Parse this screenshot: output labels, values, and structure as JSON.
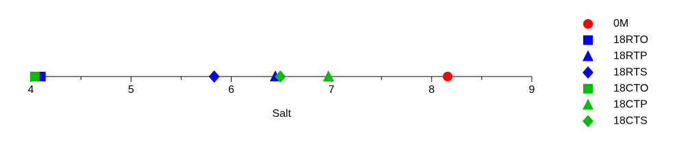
{
  "chart_data": {
    "type": "scatter",
    "x_label": "Salt",
    "xlim": [
      4,
      9
    ],
    "xticks": [
      4,
      5,
      6,
      7,
      8,
      9
    ],
    "minor_xticks": [
      4.5,
      5.5,
      6.5,
      7.5,
      8.5
    ],
    "legend": "right",
    "series": [
      {
        "name": "0M",
        "color": "#ff0000",
        "marker": "circle",
        "values": [
          8.16
        ]
      },
      {
        "name": "18RTO",
        "color": "#0000ff",
        "marker": "square",
        "values": [
          4.1
        ]
      },
      {
        "name": "18RTP",
        "color": "#0000ff",
        "marker": "triangle",
        "values": [
          6.44
        ]
      },
      {
        "name": "18RTS",
        "color": "#0000ff",
        "marker": "diamond",
        "values": [
          5.83
        ]
      },
      {
        "name": "18CTO",
        "color": "#00c000",
        "marker": "square",
        "values": [
          4.04
        ]
      },
      {
        "name": "18CTP",
        "color": "#00c000",
        "marker": "triangle",
        "values": [
          6.97
        ]
      },
      {
        "name": "18CTS",
        "color": "#00c000",
        "marker": "diamond",
        "values": [
          6.49
        ]
      }
    ]
  }
}
